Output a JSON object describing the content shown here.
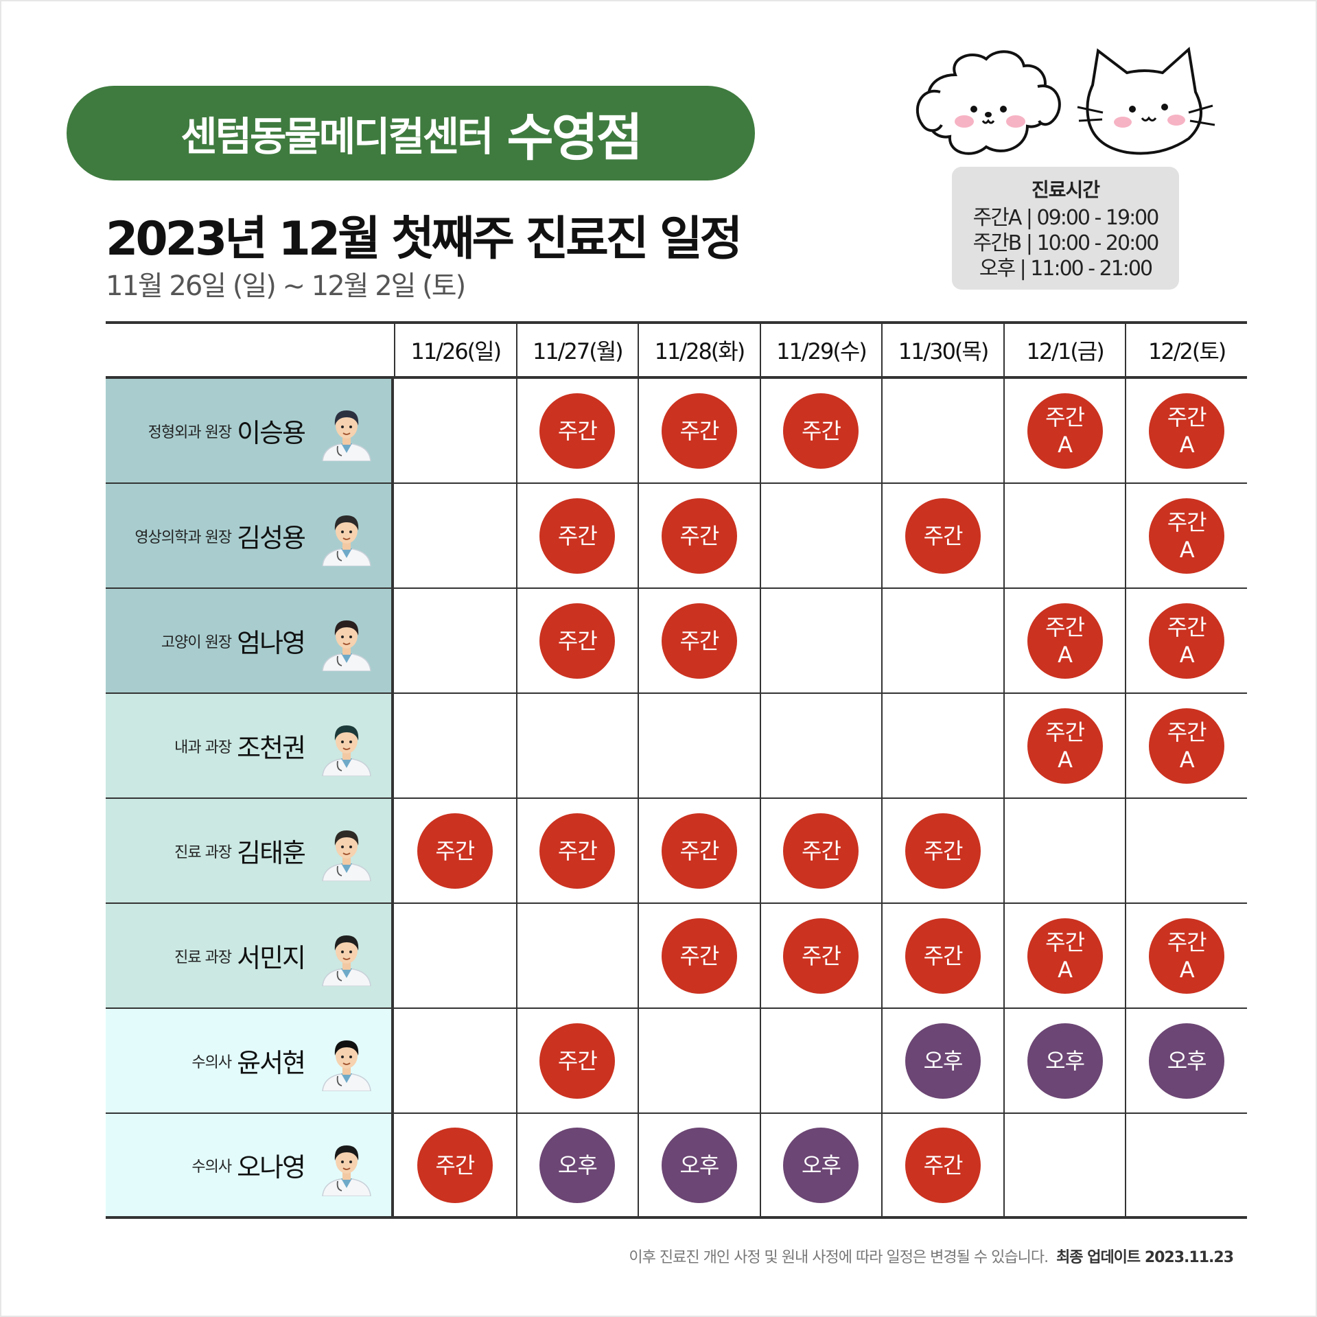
{
  "header": {
    "clinic_name": "센텀동물메디컬센터",
    "branch": "수영점",
    "title": "2023년 12월 첫째주 진료진 일정",
    "date_range": "11월 26일 (일) ~ 12월 2일 (토)"
  },
  "hours": {
    "title": "진료시간",
    "lines": [
      "주간A | 09:00 - 19:00",
      "주간B | 10:00 - 20:00",
      "오후 | 11:00 - 21:00"
    ]
  },
  "days": [
    "11/26(일)",
    "11/27(월)",
    "11/28(화)",
    "11/29(수)",
    "11/30(목)",
    "12/1(금)",
    "12/2(토)"
  ],
  "colors": {
    "banner": "#3f7b3f",
    "day_shift": "#cb3220",
    "pm_shift": "#6c4674",
    "row_group_1": "#a9cdcf",
    "row_group_2": "#cbe8e2",
    "row_group_3": "#e3fbfb"
  },
  "doctors": [
    {
      "role": "정형외과 원장",
      "name": "이승용",
      "group": 1,
      "shifts": [
        "",
        "주간",
        "주간",
        "주간",
        "",
        "주간 A",
        "주간 A"
      ]
    },
    {
      "role": "영상의학과 원장",
      "name": "김성용",
      "group": 1,
      "shifts": [
        "",
        "주간",
        "주간",
        "",
        "주간",
        "",
        "주간 A"
      ]
    },
    {
      "role": "고양이 원장",
      "name": "엄나영",
      "group": 1,
      "shifts": [
        "",
        "주간",
        "주간",
        "",
        "",
        "주간 A",
        "주간 A"
      ]
    },
    {
      "role": "내과 과장",
      "name": "조천권",
      "group": 2,
      "shifts": [
        "",
        "",
        "",
        "",
        "",
        "주간 A",
        "주간 A"
      ]
    },
    {
      "role": "진료 과장",
      "name": "김태훈",
      "group": 2,
      "shifts": [
        "주간",
        "주간",
        "주간",
        "주간",
        "주간",
        "",
        ""
      ]
    },
    {
      "role": "진료 과장",
      "name": "서민지",
      "group": 2,
      "shifts": [
        "",
        "",
        "주간",
        "주간",
        "주간",
        "주간 A",
        "주간 A"
      ]
    },
    {
      "role": "수의사",
      "name": "윤서현",
      "group": 3,
      "shifts": [
        "",
        "주간",
        "",
        "",
        "오후",
        "오후",
        "오후"
      ]
    },
    {
      "role": "수의사",
      "name": "오나영",
      "group": 3,
      "shifts": [
        "주간",
        "오후",
        "오후",
        "오후",
        "주간",
        "",
        ""
      ]
    }
  ],
  "footer": {
    "note": "이후 진료진 개인 사정 및 원내 사정에 따라 일정은 변경될 수 있습니다.",
    "updated": "최종 업데이트  2023.11.23"
  }
}
